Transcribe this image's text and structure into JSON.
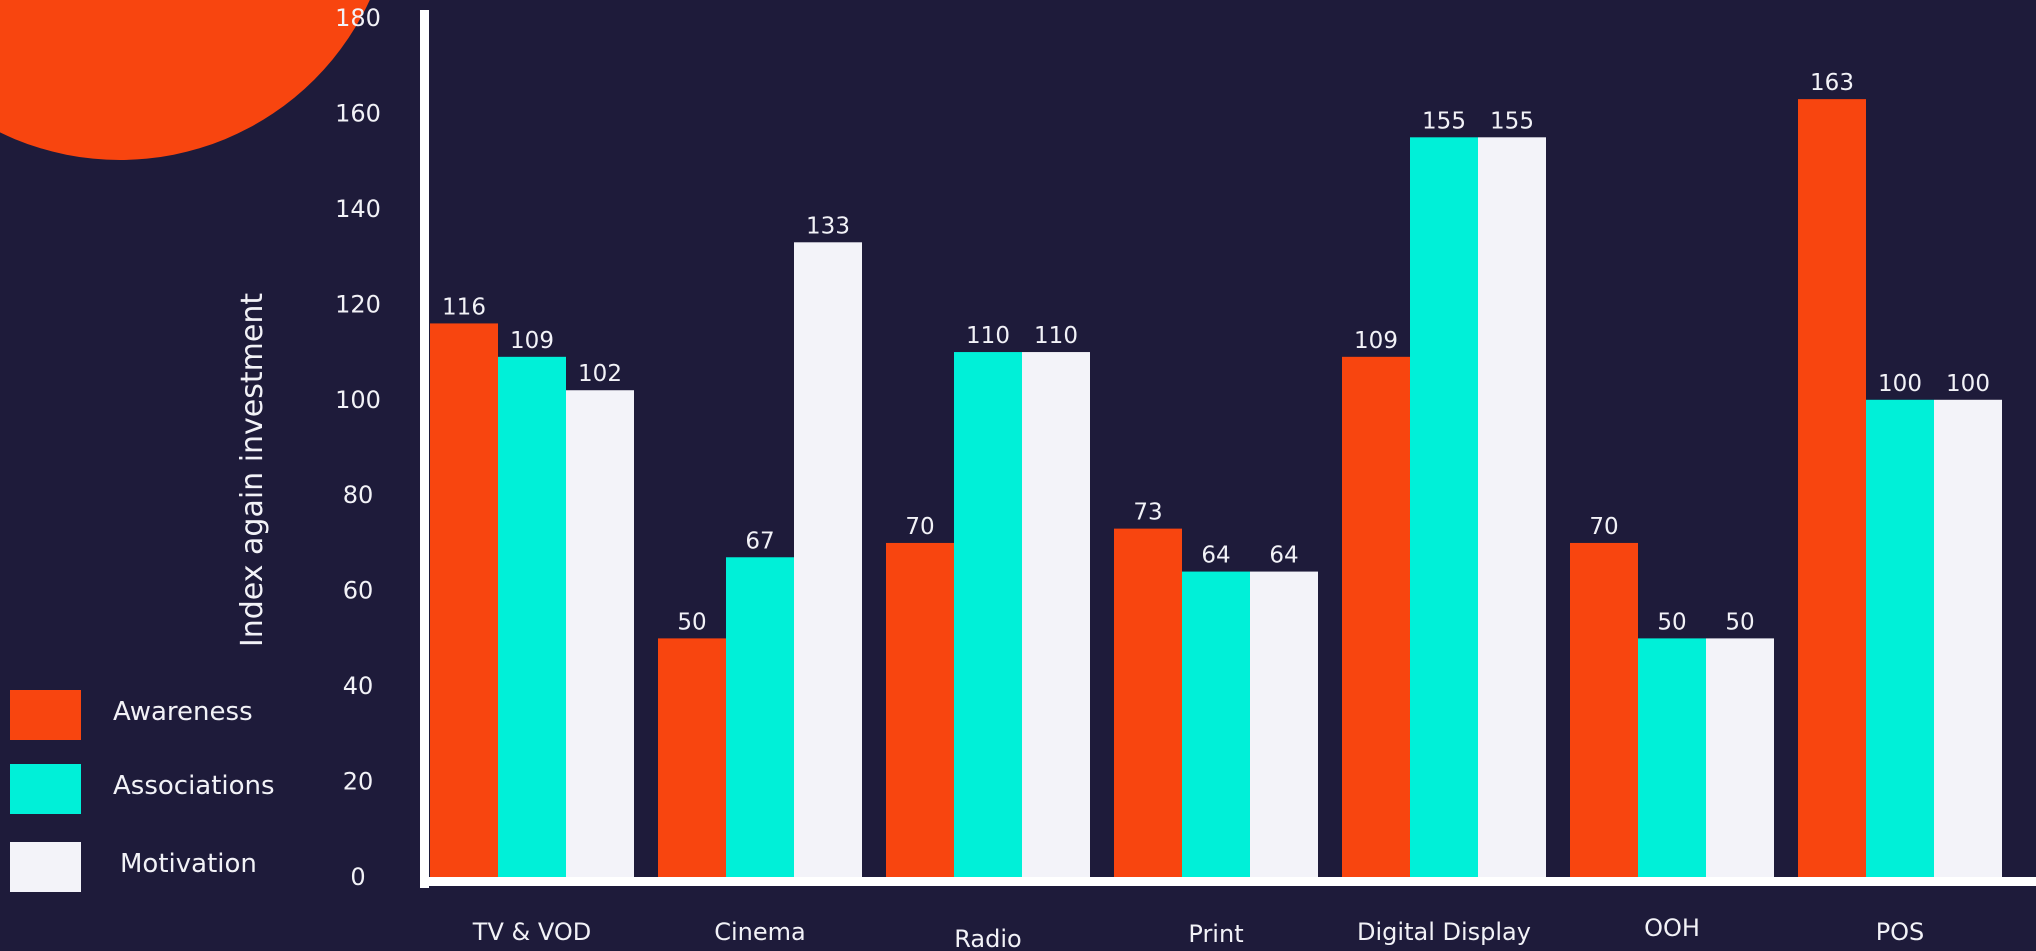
{
  "chart_data": {
    "type": "bar",
    "categories": [
      "TV & VOD",
      "Cinema",
      "Radio",
      "Print",
      "Digital Display",
      "OOH",
      "POS"
    ],
    "series": [
      {
        "name": "Awareness",
        "color": "#f8450f",
        "values": [
          116,
          50,
          70,
          73,
          109,
          70,
          163
        ]
      },
      {
        "name": "Associations",
        "color": "#00f0d8",
        "values": [
          109,
          67,
          110,
          64,
          155,
          50,
          100
        ]
      },
      {
        "name": "Motivation",
        "color": "#f3f3f9",
        "values": [
          102,
          133,
          110,
          64,
          155,
          50,
          100
        ]
      }
    ],
    "y_ticks": [
      "0",
      "20",
      "40",
      "60",
      "80",
      "100",
      "120",
      "140",
      "160",
      "180"
    ],
    "title": "",
    "xlabel": "",
    "ylabel": "Index again investment",
    "ylim": [
      0,
      180
    ],
    "grid": false,
    "legend_position": "bottom-left",
    "background_color": "#1e1b3a",
    "axis_color": "#ffffff",
    "decoration_color": "#f8450f"
  }
}
